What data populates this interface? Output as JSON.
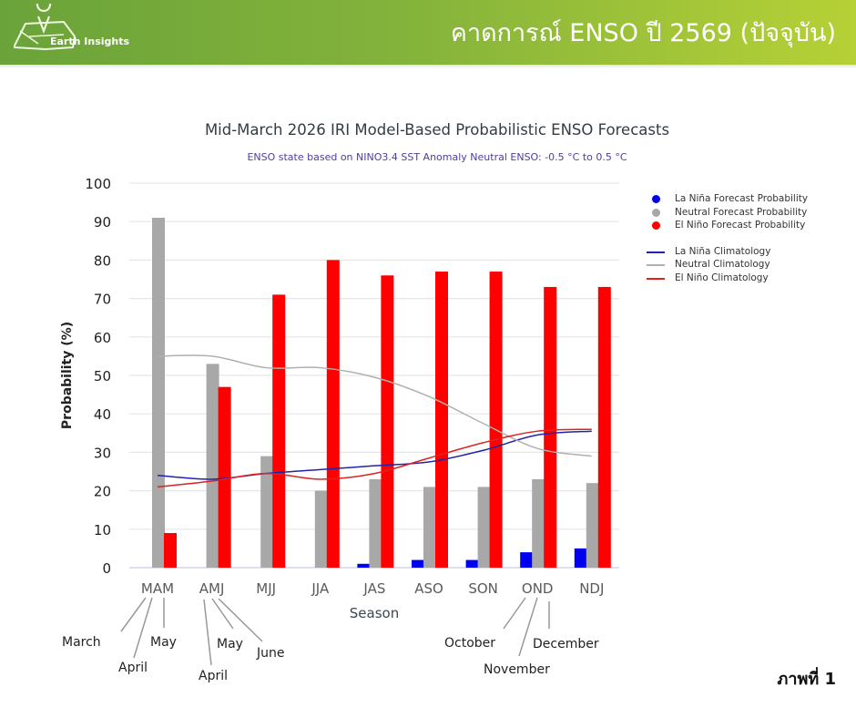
{
  "header": {
    "logo_text": "Earth Insights",
    "title": "คาดการณ์ ENSO ปี 2569 (ปัจจุบัน)"
  },
  "figure_label": "ภาพที่ 1",
  "colors": {
    "la_nina": "#0000ee",
    "neutral": "#a8a8a8",
    "el_nino": "#ff0000",
    "la_nina_clim": "#2222aa",
    "neutral_clim": "#b0b0b0",
    "el_nino_clim": "#dd2222"
  },
  "chart_data": {
    "type": "bar",
    "title": "Mid-March 2026 IRI Model-Based Probabilistic ENSO Forecasts",
    "subtitle": "ENSO state based on NINO3.4 SST Anomaly Neutral ENSO: -0.5 °C to 0.5 °C",
    "xlabel": "Season",
    "ylabel": "Probability (%)",
    "ylim": [
      0,
      100
    ],
    "yticks": [
      0,
      10,
      20,
      30,
      40,
      50,
      60,
      70,
      80,
      90,
      100
    ],
    "grid": true,
    "legend_position": "right",
    "categories": [
      "MAM",
      "AMJ",
      "MJJ",
      "JJA",
      "JAS",
      "ASO",
      "SON",
      "OND",
      "NDJ"
    ],
    "series": [
      {
        "name": "La Niña Forecast Probability",
        "kind": "bar",
        "color_key": "la_nina",
        "values": [
          0,
          0,
          0,
          0,
          1,
          2,
          2,
          4,
          5
        ]
      },
      {
        "name": "Neutral Forecast Probability",
        "kind": "bar",
        "color_key": "neutral",
        "values": [
          91,
          53,
          29,
          20,
          23,
          21,
          21,
          23,
          22
        ]
      },
      {
        "name": "El Niño Forecast Probability",
        "kind": "bar",
        "color_key": "el_nino",
        "values": [
          9,
          47,
          71,
          80,
          76,
          77,
          77,
          73,
          73
        ]
      },
      {
        "name": "La Niña Climatology",
        "kind": "line",
        "color_key": "la_nina_clim",
        "values": [
          24,
          23,
          24.5,
          25.5,
          26.5,
          27.5,
          30.5,
          34.5,
          35.5
        ]
      },
      {
        "name": "Neutral Climatology",
        "kind": "line",
        "color_key": "neutral_clim",
        "values": [
          55,
          55,
          52,
          52,
          49.5,
          44.5,
          37.5,
          31,
          29
        ]
      },
      {
        "name": "El Niño Climatology",
        "kind": "line",
        "color_key": "el_nino_clim",
        "values": [
          21,
          22.5,
          24.5,
          23,
          24.5,
          28.5,
          32.5,
          35.5,
          36
        ]
      }
    ]
  },
  "month_annotations": [
    {
      "label": "March",
      "season": "MAM"
    },
    {
      "label": "April",
      "season": "MAM"
    },
    {
      "label": "May",
      "season": "MAM"
    },
    {
      "label": "April",
      "season": "AMJ"
    },
    {
      "label": "May",
      "season": "AMJ"
    },
    {
      "label": "June",
      "season": "AMJ"
    },
    {
      "label": "October",
      "season": "OND"
    },
    {
      "label": "November",
      "season": "OND"
    },
    {
      "label": "December",
      "season": "OND"
    }
  ]
}
